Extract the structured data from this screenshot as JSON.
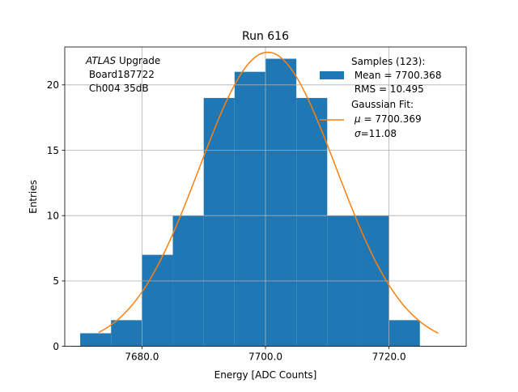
{
  "chart_data": {
    "type": "bar",
    "title": "Run 616",
    "xlabel": "Energy [ADC Counts]",
    "ylabel": "Entries",
    "xlim": [
      7667.5,
      7732.5
    ],
    "ylim": [
      0,
      22.9
    ],
    "grid": true,
    "xticks": [
      7680,
      7700,
      7720
    ],
    "xtick_labels": [
      "7680.0",
      "7700.0",
      "7720.0"
    ],
    "yticks": [
      0,
      5,
      10,
      15,
      20
    ],
    "ytick_labels": [
      "0",
      "5",
      "10",
      "15",
      "20"
    ],
    "bin_edges": [
      7670,
      7675,
      7680,
      7685,
      7690,
      7695,
      7700,
      7705,
      7710,
      7715,
      7720,
      7725
    ],
    "values": [
      1,
      2,
      7,
      10,
      19,
      21,
      22,
      19,
      10,
      10,
      2
    ],
    "fit": {
      "mu": 7700.369,
      "sigma": 11.08,
      "amplitude": 22.5,
      "x_range": [
        7673,
        7728
      ]
    },
    "bar_color": "#1f77b4",
    "fit_color": "#ff7f0e",
    "annotation": {
      "line1_italic": "ATLAS",
      "line1_rest": " Upgrade",
      "line2": " Board187722",
      "line3": " Ch004 35dB"
    },
    "legend": {
      "position": "upper right",
      "samples_title": "Samples (123):",
      "samples_mean": " Mean = 7700.368",
      "samples_rms": " RMS = 10.495",
      "fit_title": "Gaussian Fit:",
      "fit_mu_symbol": "μ",
      "fit_mu_text": " = 7700.369",
      "fit_sigma_symbol": "σ",
      "fit_sigma_text": "=11.08"
    }
  }
}
